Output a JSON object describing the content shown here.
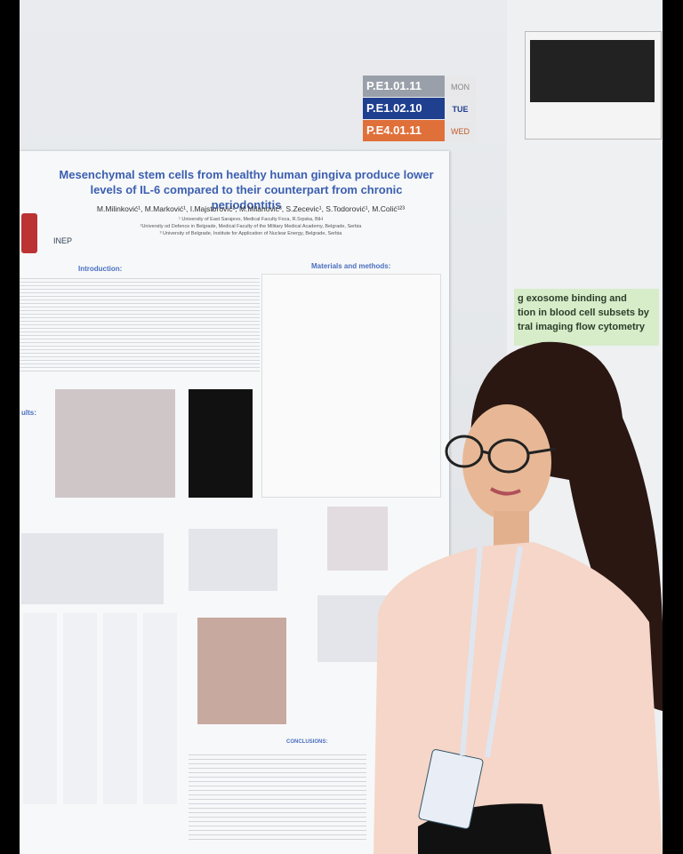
{
  "session_tags": [
    {
      "code": "P.E1.01.11",
      "day": "MON"
    },
    {
      "code": "P.E1.02.10",
      "day": "TUE"
    },
    {
      "code": "P.E4.01.11",
      "day": "WED"
    }
  ],
  "poster": {
    "title": "Mesenchymal stem cells from healthy human gingiva produce lower levels of IL-6 compared to their counterpart from chronic periodontitis",
    "authors": "M.Milinković¹, M.Marković¹, I.Majstorović², M.Milanović³, S.Zecevic¹, S.Todorović¹, M.Colić¹²³",
    "affiliations": [
      "¹ University of East Sarajevo, Medical Faculty Foca, R.Srpska, BiH",
      "²University od Defence in Belgrade, Medical Faculty of the Military Medical Academy, Belgrade, Serbia",
      "³ University of Belgrade, Institute for Application of Nuclear Energy, Belgrade, Serbia"
    ],
    "logo": "INEP",
    "sections": [
      "Introduction:",
      "Materials and methods:",
      "ults:",
      "CONCLUSIONS:"
    ]
  },
  "neighbor_poster": {
    "lines": [
      "g exosome binding and",
      "tion in blood cell subsets by",
      "tral imaging flow cytometry"
    ]
  }
}
